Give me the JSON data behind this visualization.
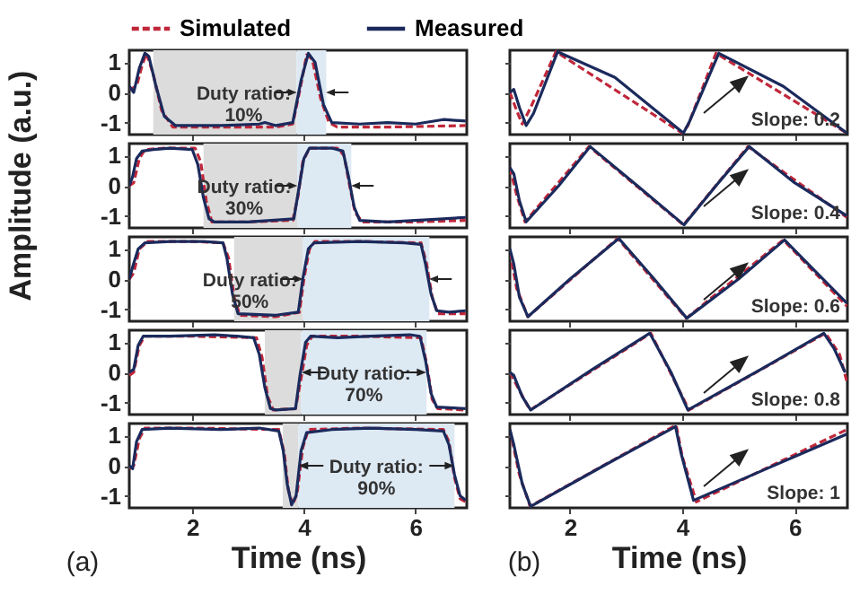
{
  "chart_data": [
    {
      "type": "line",
      "xlim": [
        0.87,
        6.92
      ],
      "xticks": [
        2,
        4,
        6
      ],
      "ylim": [
        -1.4,
        1.4
      ],
      "yticks": [
        -1,
        0,
        1
      ],
      "tick_labels": "y",
      "legend": "top",
      "series": [
        {
          "name": "Simulated",
          "color": "#c0273a",
          "line_style": "dashed",
          "x": [
            0.87,
            1.0,
            1.1,
            1.18,
            1.3,
            1.45,
            1.65,
            2.5,
            3.5,
            3.8,
            3.93,
            4.05,
            4.15,
            4.3,
            4.45,
            4.6,
            5.5,
            6.9
          ],
          "values": [
            0.1,
            0.2,
            0.9,
            1.3,
            0.6,
            -0.6,
            -1.15,
            -1.15,
            -1.15,
            -1.05,
            0.1,
            1.25,
            1.1,
            -0.2,
            -1.0,
            -1.15,
            -1.15,
            -1.1
          ]
        },
        {
          "name": "Measured",
          "color": "#1b2a5c",
          "line_style": "solid",
          "x": [
            0.87,
            0.95,
            1.05,
            1.15,
            1.22,
            1.35,
            1.5,
            1.7,
            2.5,
            3.2,
            3.3,
            3.5,
            3.8,
            3.95,
            4.08,
            4.2,
            4.35,
            4.5,
            5.0,
            5.5,
            6.0,
            6.5,
            6.9
          ],
          "values": [
            0.2,
            0.0,
            0.8,
            1.3,
            1.2,
            0.2,
            -0.8,
            -1.1,
            -1.1,
            -1.05,
            -1.0,
            -1.1,
            -1.0,
            0.4,
            1.3,
            1.0,
            -0.4,
            -1.0,
            -1.05,
            -1.0,
            -1.05,
            -0.9,
            -0.95
          ]
        }
      ],
      "bands": [
        {
          "axis": "x",
          "from": 1.3,
          "to": 3.87,
          "color": "#dcdcdc"
        },
        {
          "axis": "x",
          "from": 3.87,
          "to": 4.4,
          "color": "#dde9f3"
        }
      ],
      "annotations": [
        {
          "text": "Duty ratio:\n10%",
          "x": 3.87,
          "y": 0
        }
      ]
    },
    {
      "type": "line",
      "xlim": [
        0.93,
        6.94
      ],
      "xticks": [
        2,
        4,
        6
      ],
      "ylim": [
        -1.4,
        1.4
      ],
      "yticks": [
        -1,
        0,
        1
      ],
      "tick_labels": false,
      "series": [
        {
          "color": "#c0273a",
          "line_style": "dashed",
          "x": [
            0.93,
            1.05,
            1.15,
            1.3,
            1.75,
            4.0,
            4.1,
            4.6,
            6.93
          ],
          "values": [
            0.0,
            -0.6,
            -1.05,
            -0.5,
            1.35,
            -1.35,
            -1.1,
            1.3,
            -1.35
          ]
        },
        {
          "color": "#1b2a5c",
          "line_style": "solid",
          "x": [
            0.93,
            1.0,
            1.1,
            1.22,
            1.35,
            1.78,
            2.8,
            4.02,
            4.12,
            4.65,
            5.8,
            6.93
          ],
          "values": [
            0.0,
            0.1,
            -0.5,
            -1.1,
            -0.7,
            1.35,
            0.5,
            -1.35,
            -1.0,
            1.3,
            0.2,
            -1.35
          ]
        }
      ],
      "annotations": [
        "Slope: 0.2"
      ]
    },
    {
      "type": "line",
      "xlim": [
        0.87,
        6.92
      ],
      "xticks": [
        2,
        4,
        6
      ],
      "ylim": [
        -1.4,
        1.4
      ],
      "yticks": [
        -1,
        0,
        1
      ],
      "tick_labels": "y",
      "ylabel": "Amplitude (a.u.)",
      "series": [
        {
          "color": "#c0273a",
          "line_style": "dashed",
          "x": [
            0.87,
            0.95,
            1.05,
            1.15,
            1.5,
            2.05,
            2.15,
            2.25,
            2.35,
            3.0,
            3.8,
            3.9,
            3.98,
            4.1,
            4.6,
            4.72,
            4.82,
            4.92,
            5.05,
            6.0,
            6.9
          ],
          "values": [
            0.0,
            0.1,
            0.9,
            1.2,
            1.25,
            1.25,
            0.8,
            -0.5,
            -1.2,
            -1.2,
            -1.15,
            -0.3,
            0.8,
            1.25,
            1.25,
            1.0,
            0.0,
            -0.9,
            -1.2,
            -1.2,
            -1.15
          ]
        },
        {
          "color": "#1b2a5c",
          "line_style": "solid",
          "x": [
            0.87,
            0.93,
            1.0,
            1.1,
            1.3,
            1.6,
            2.0,
            2.1,
            2.2,
            2.3,
            2.4,
            3.0,
            3.82,
            3.9,
            4.0,
            4.1,
            4.5,
            4.7,
            4.8,
            4.9,
            5.0,
            5.5,
            6.0,
            6.5,
            6.9
          ],
          "values": [
            0.0,
            0.3,
            0.9,
            1.15,
            1.2,
            1.25,
            1.2,
            0.7,
            -0.4,
            -1.1,
            -1.2,
            -1.2,
            -1.1,
            -0.2,
            0.9,
            1.25,
            1.25,
            1.15,
            0.3,
            -0.7,
            -1.15,
            -1.2,
            -1.15,
            -1.1,
            -1.05
          ]
        }
      ],
      "bands": [
        {
          "axis": "x",
          "from": 2.2,
          "to": 3.88,
          "color": "#dcdcdc"
        },
        {
          "axis": "x",
          "from": 3.88,
          "to": 4.85,
          "color": "#dde9f3"
        }
      ],
      "annotations": [
        {
          "text": "Duty ratio:\n30%",
          "x": 3.88,
          "y": 0
        }
      ]
    },
    {
      "type": "line",
      "xlim": [
        0.93,
        6.94
      ],
      "xticks": [
        2,
        4,
        6
      ],
      "ylim": [
        -1.4,
        1.4
      ],
      "yticks": [
        -1,
        0,
        1
      ],
      "tick_labels": false,
      "series": [
        {
          "color": "#c0273a",
          "line_style": "dashed",
          "x": [
            0.93,
            1.05,
            1.2,
            2.34,
            4.02,
            5.17,
            6.93
          ],
          "values": [
            0.6,
            -0.3,
            -1.2,
            1.3,
            -1.3,
            1.3,
            -1.05
          ]
        },
        {
          "color": "#1b2a5c",
          "line_style": "solid",
          "x": [
            0.93,
            1.0,
            1.1,
            1.22,
            1.8,
            2.36,
            3.2,
            4.03,
            4.6,
            5.19,
            6.0,
            6.93
          ],
          "values": [
            0.6,
            0.4,
            -0.5,
            -1.2,
            0.0,
            1.3,
            0.0,
            -1.3,
            0.0,
            1.3,
            0.1,
            -1.0
          ]
        }
      ],
      "annotations": [
        "Slope: 0.4"
      ]
    },
    {
      "type": "line",
      "xlim": [
        0.87,
        6.92
      ],
      "xticks": [
        2,
        4,
        6
      ],
      "ylim": [
        -1.4,
        1.4
      ],
      "yticks": [
        -1,
        0,
        1
      ],
      "tick_labels": "y",
      "series": [
        {
          "color": "#c0273a",
          "line_style": "dashed",
          "x": [
            0.87,
            0.95,
            1.05,
            1.2,
            2.0,
            2.55,
            2.65,
            2.75,
            2.85,
            3.5,
            3.92,
            4.0,
            4.1,
            4.2,
            5.0,
            6.1,
            6.2,
            6.3,
            6.4,
            6.9
          ],
          "values": [
            0.0,
            0.2,
            1.0,
            1.25,
            1.25,
            1.2,
            0.7,
            -0.6,
            -1.2,
            -1.25,
            -1.1,
            0.0,
            1.0,
            1.25,
            1.25,
            1.2,
            0.5,
            -0.6,
            -1.15,
            -1.15
          ]
        },
        {
          "color": "#1b2a5c",
          "line_style": "solid",
          "x": [
            0.87,
            0.93,
            1.03,
            1.15,
            1.6,
            2.2,
            2.55,
            2.62,
            2.72,
            2.82,
            3.5,
            3.9,
            3.98,
            4.08,
            4.18,
            5.0,
            5.8,
            6.1,
            6.18,
            6.28,
            6.38,
            6.6,
            6.9
          ],
          "values": [
            0.0,
            0.4,
            1.0,
            1.2,
            1.25,
            1.25,
            1.2,
            0.7,
            -0.5,
            -1.15,
            -1.2,
            -1.1,
            0.0,
            1.0,
            1.2,
            1.25,
            1.2,
            1.15,
            0.5,
            -0.5,
            -1.05,
            -1.1,
            -1.05
          ]
        }
      ],
      "bands": [
        {
          "axis": "x",
          "from": 2.75,
          "to": 3.98,
          "color": "#dcdcdc"
        },
        {
          "axis": "x",
          "from": 3.98,
          "to": 6.25,
          "color": "#dde9f3"
        }
      ],
      "annotations": [
        {
          "text": "Duty ratio:\n50%",
          "x": 3.98,
          "y": 0
        }
      ]
    },
    {
      "type": "line",
      "xlim": [
        0.93,
        6.94
      ],
      "xticks": [
        2,
        4,
        6
      ],
      "ylim": [
        -1.4,
        1.4
      ],
      "yticks": [
        -1,
        0,
        1
      ],
      "tick_labels": false,
      "series": [
        {
          "color": "#c0273a",
          "line_style": "dashed",
          "x": [
            0.93,
            1.05,
            1.25,
            2.85,
            4.07,
            5.8,
            6.93
          ],
          "values": [
            0.9,
            -0.3,
            -1.25,
            1.35,
            -1.3,
            1.3,
            -0.9
          ]
        },
        {
          "color": "#1b2a5c",
          "line_style": "solid",
          "x": [
            0.93,
            1.0,
            1.1,
            1.25,
            2.0,
            2.87,
            3.5,
            4.08,
            5.0,
            5.82,
            6.4,
            6.93
          ],
          "values": [
            1.0,
            0.5,
            -0.6,
            -1.25,
            0.0,
            1.35,
            0.0,
            -1.3,
            0.0,
            1.3,
            0.2,
            -0.8
          ]
        }
      ],
      "annotations": [
        "Slope: 0.6"
      ]
    },
    {
      "type": "line",
      "xlim": [
        0.87,
        6.92
      ],
      "xticks": [
        2,
        4,
        6
      ],
      "ylim": [
        -1.4,
        1.4
      ],
      "yticks": [
        -1,
        0,
        1
      ],
      "tick_labels": "y",
      "series": [
        {
          "color": "#c0273a",
          "line_style": "dashed",
          "x": [
            0.87,
            0.95,
            1.05,
            1.15,
            2.0,
            3.15,
            3.25,
            3.35,
            3.45,
            3.85,
            3.95,
            4.05,
            4.15,
            5.0,
            6.1,
            6.2,
            6.3,
            6.4,
            6.9
          ],
          "values": [
            -0.1,
            0.0,
            0.9,
            1.2,
            1.2,
            1.15,
            0.5,
            -0.8,
            -1.25,
            -1.2,
            -0.2,
            0.9,
            1.2,
            1.2,
            1.15,
            0.3,
            -0.9,
            -1.2,
            -1.25
          ]
        },
        {
          "color": "#1b2a5c",
          "line_style": "solid",
          "x": [
            0.87,
            0.95,
            1.03,
            1.12,
            1.6,
            2.4,
            2.8,
            3.1,
            3.2,
            3.3,
            3.4,
            3.5,
            3.85,
            3.93,
            4.03,
            4.12,
            4.6,
            5.2,
            5.9,
            6.08,
            6.18,
            6.28,
            6.38,
            6.9
          ],
          "values": [
            0.0,
            0.1,
            0.9,
            1.2,
            1.2,
            1.25,
            1.2,
            1.15,
            0.6,
            -0.5,
            -1.2,
            -1.25,
            -1.2,
            -0.1,
            1.0,
            1.2,
            1.15,
            1.2,
            1.25,
            1.2,
            0.4,
            -0.7,
            -1.15,
            -1.2
          ]
        }
      ],
      "bands": [
        {
          "axis": "x",
          "from": 3.3,
          "to": 3.95,
          "color": "#dcdcdc"
        },
        {
          "axis": "x",
          "from": 3.95,
          "to": 6.2,
          "color": "#dde9f3"
        }
      ],
      "annotations": [
        {
          "text": "Duty ratio:\n70%",
          "x": 6.2,
          "y": 0
        }
      ]
    },
    {
      "type": "line",
      "xlim": [
        0.93,
        6.94
      ],
      "xticks": [
        2,
        4,
        6
      ],
      "ylim": [
        -1.4,
        1.4
      ],
      "yticks": [
        -1,
        0,
        1
      ],
      "tick_labels": false,
      "series": [
        {
          "color": "#c0273a",
          "line_style": "dashed",
          "x": [
            0.93,
            1.1,
            1.29,
            3.44,
            4.12,
            6.55,
            6.8,
            6.93
          ],
          "values": [
            0.0,
            -0.6,
            -1.25,
            1.3,
            -1.25,
            1.3,
            0.6,
            -0.3
          ]
        },
        {
          "color": "#1b2a5c",
          "line_style": "solid",
          "x": [
            0.93,
            1.0,
            1.15,
            1.3,
            2.4,
            3.42,
            3.8,
            4.1,
            5.4,
            6.52,
            6.7,
            6.9
          ],
          "values": [
            0.0,
            -0.1,
            -0.8,
            -1.25,
            0.1,
            1.3,
            0.0,
            -1.25,
            0.1,
            1.3,
            0.8,
            0.0
          ]
        }
      ],
      "annotations": [
        "Slope: 0.8"
      ]
    },
    {
      "type": "line",
      "xlim": [
        0.87,
        6.92
      ],
      "xticks": [
        2,
        4,
        6
      ],
      "ylim": [
        -1.4,
        1.4
      ],
      "yticks": [
        -1,
        0,
        1
      ],
      "xlabel": "Time (ns)",
      "series": [
        {
          "color": "#c0273a",
          "line_style": "dashed",
          "x": [
            0.87,
            0.95,
            1.05,
            1.15,
            2.0,
            3.55,
            3.65,
            3.72,
            3.8,
            3.88,
            3.98,
            4.08,
            5.0,
            6.5,
            6.6,
            6.7,
            6.8,
            6.9
          ],
          "values": [
            -0.1,
            0.0,
            0.9,
            1.25,
            1.25,
            1.2,
            0.4,
            -0.8,
            -1.3,
            -0.9,
            0.6,
            1.2,
            1.25,
            1.2,
            0.8,
            -0.4,
            -1.1,
            -1.2
          ]
        },
        {
          "color": "#1b2a5c",
          "line_style": "solid",
          "x": [
            0.87,
            0.93,
            1.0,
            1.1,
            1.6,
            2.5,
            3.2,
            3.55,
            3.63,
            3.7,
            3.78,
            3.86,
            3.95,
            4.05,
            4.5,
            5.2,
            6.0,
            6.5,
            6.6,
            6.7,
            6.8,
            6.9
          ],
          "values": [
            0.0,
            -0.1,
            0.8,
            1.2,
            1.25,
            1.2,
            1.25,
            1.15,
            0.5,
            -0.6,
            -1.3,
            -1.0,
            0.5,
            1.1,
            1.2,
            1.25,
            1.2,
            1.15,
            0.7,
            -0.3,
            -1.0,
            -1.15
          ]
        }
      ],
      "bands": [
        {
          "axis": "x",
          "from": 3.62,
          "to": 3.9,
          "color": "#dcdcdc"
        },
        {
          "axis": "x",
          "from": 3.9,
          "to": 6.7,
          "color": "#dde9f3"
        }
      ],
      "annotations": [
        {
          "text": "Duty ratio:\n90%",
          "x": 6.7,
          "y": 0
        },
        "(a)"
      ]
    },
    {
      "type": "line",
      "xlim": [
        0.93,
        6.94
      ],
      "xticks": [
        2,
        4,
        6
      ],
      "ylim": [
        -1.4,
        1.4
      ],
      "yticks": [
        -1,
        0,
        1
      ],
      "tick_labels": "x",
      "xlabel": "Time (ns)",
      "series": [
        {
          "color": "#c0273a",
          "line_style": "dashed",
          "x": [
            0.93,
            1.1,
            1.29,
            3.89,
            4.0,
            4.25,
            6.93
          ],
          "values": [
            1.2,
            -0.3,
            -1.35,
            1.35,
            0.3,
            -1.2,
            1.2
          ]
        },
        {
          "color": "#1b2a5c",
          "line_style": "solid",
          "x": [
            0.93,
            1.0,
            1.15,
            1.3,
            2.6,
            3.88,
            3.98,
            4.2,
            5.5,
            6.93
          ],
          "values": [
            1.2,
            0.7,
            -0.6,
            -1.35,
            0.0,
            1.3,
            0.4,
            -1.15,
            -0.1,
            1.05
          ]
        }
      ],
      "annotations": [
        "Slope: 1",
        "(b)"
      ]
    }
  ]
}
